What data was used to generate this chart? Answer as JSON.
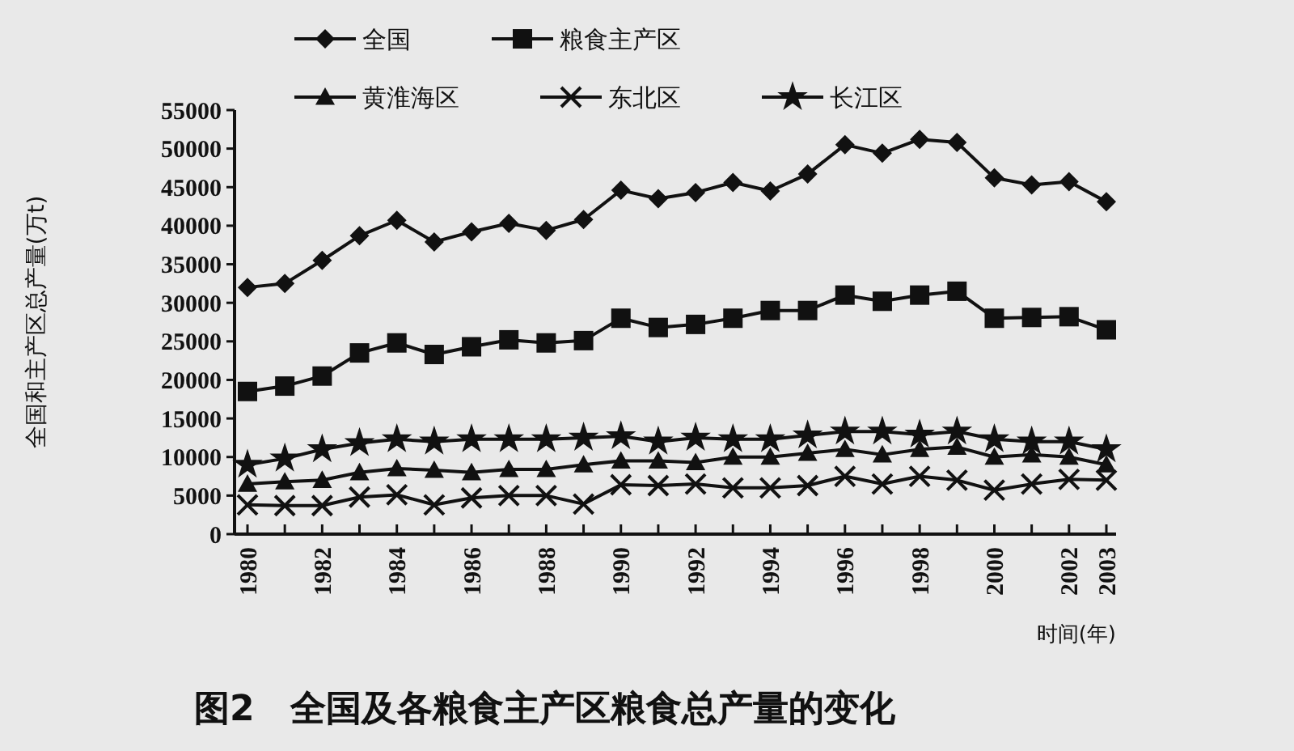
{
  "chart_data": {
    "type": "line",
    "title": "图2　全国及各粮食主产区粮食总产量的变化",
    "xlabel": "时间(年)",
    "ylabel": "全国和主产区总产量(万t)",
    "categories": [
      "1980",
      null,
      "1982",
      null,
      "1984",
      null,
      "1986",
      null,
      "1988",
      null,
      "1990",
      null,
      "1992",
      null,
      "1994",
      null,
      "1996",
      null,
      "1998",
      null,
      "2000",
      null,
      "2002",
      "2003"
    ],
    "ylim": [
      0,
      55000
    ],
    "yticks": [
      0,
      5000,
      10000,
      15000,
      20000,
      25000,
      30000,
      35000,
      40000,
      45000,
      50000,
      55000
    ],
    "legend": "top",
    "grid": false,
    "series": [
      {
        "name": "全国",
        "color": "#111111",
        "marker": "diamond",
        "values": [
          32000,
          32500,
          35500,
          38700,
          40700,
          37900,
          39200,
          40300,
          39400,
          40800,
          44600,
          43500,
          44300,
          45600,
          44500,
          46700,
          50500,
          49400,
          51200,
          50800,
          46200,
          45300,
          45700,
          43100
        ]
      },
      {
        "name": "粮食主产区",
        "color": "#111111",
        "marker": "square",
        "values": [
          18500,
          19200,
          20500,
          23500,
          24800,
          23300,
          24300,
          25200,
          24800,
          25100,
          28000,
          26800,
          27200,
          28000,
          29000,
          29000,
          31000,
          30200,
          31000,
          31500,
          28000,
          28100,
          28200,
          26500
        ]
      },
      {
        "name": "黄淮海区",
        "color": "#111111",
        "marker": "triangle",
        "values": [
          6500,
          6800,
          7000,
          8000,
          8500,
          8300,
          8000,
          8400,
          8400,
          9000,
          9500,
          9500,
          9300,
          10000,
          10000,
          10500,
          11000,
          10300,
          11000,
          11300,
          10000,
          10300,
          10000,
          9000
        ]
      },
      {
        "name": "东北区",
        "color": "#111111",
        "marker": "cross",
        "values": [
          3800,
          3700,
          3700,
          4800,
          5100,
          3800,
          4700,
          5000,
          5000,
          3900,
          6400,
          6300,
          6500,
          6000,
          6000,
          6300,
          7500,
          6500,
          7500,
          7000,
          5700,
          6500,
          7100,
          7000
        ]
      },
      {
        "name": "长江区",
        "color": "#111111",
        "marker": "star",
        "values": [
          9000,
          9800,
          11000,
          11800,
          12300,
          12000,
          12300,
          12300,
          12300,
          12500,
          12700,
          12000,
          12500,
          12300,
          12300,
          12800,
          13300,
          13300,
          12900,
          13300,
          12300,
          12000,
          12000,
          11000
        ]
      }
    ]
  }
}
